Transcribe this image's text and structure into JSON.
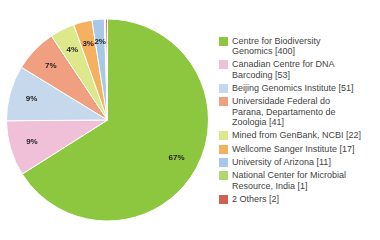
{
  "chart_data": {
    "type": "pie",
    "categories": [
      "Centre for Biodiversity\nGenomics [400]",
      "Canadian Centre for DNA\nBarcoding [53]",
      "Beijing Genomics Institute [51]",
      "Universidade Federal do\nParana, Departamento de\nZoologia [41]",
      "Mined from GenBank, NCBI [22]",
      "Wellcome Sanger Institute [17]",
      "University of Arizona [11]",
      "National Center for Microbial\nResource, India [1]",
      "2 Others [2]"
    ],
    "values": [
      67,
      9,
      9,
      7,
      4,
      3,
      2,
      0.2,
      0.3
    ],
    "value_labels": [
      "67%",
      "9%",
      "9%",
      "7%",
      "4%",
      "3%",
      "2%",
      null,
      null
    ],
    "colors": [
      "#8dc63f",
      "#f0c0d8",
      "#c5d8ec",
      "#f0a080",
      "#dce88a",
      "#f5b060",
      "#a8c8e8",
      "#b0d870",
      "#d06050"
    ],
    "data_labels": true,
    "legend": "right"
  }
}
